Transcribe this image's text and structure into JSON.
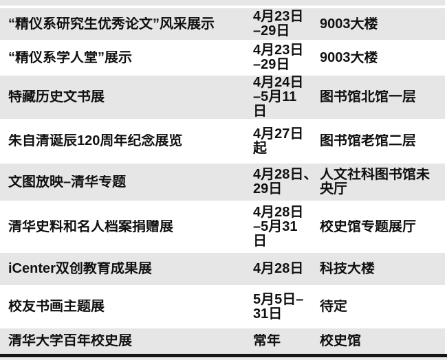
{
  "table": {
    "description_fields": [
      "name",
      "date",
      "location"
    ],
    "rows": [
      {
        "name": "“精仪系研究生优秀论文”风采展示",
        "date": "4月23日\n–29日",
        "location": "9003大楼"
      },
      {
        "name": "“精仪系学人堂”展示",
        "date": "4月23日\n–29日",
        "location": "9003大楼"
      },
      {
        "name": "特藏历史文书展",
        "date": "4月24日\n–5月11\n日",
        "location": "图书馆北馆一层"
      },
      {
        "name": "朱自清诞辰120周年纪念展览",
        "date": "4月27日\n起",
        "location": "图书馆老馆二层"
      },
      {
        "name": "文图放映–清华专题",
        "date": "4月28日、\n29日",
        "location": "人文社科图书馆未\n央厅"
      },
      {
        "name": "清华史料和名人档案捐赠展",
        "date": "4月28日\n–5月31\n日",
        "location": "校史馆专题展厅"
      },
      {
        "name": "iCenter双创教育成果展",
        "date": "4月28日",
        "location": "科技大楼"
      },
      {
        "name": "校友书画主题展",
        "date": "5月5日–\n31日",
        "location": "待定"
      },
      {
        "name": "清华大学百年校史展",
        "date": "常年",
        "location": "校史馆"
      }
    ]
  },
  "colors": {
    "row_stripe": "#e6e6e6",
    "row_alt": "#ffffff",
    "text": "#111111",
    "bottom_rule": "#161616"
  }
}
